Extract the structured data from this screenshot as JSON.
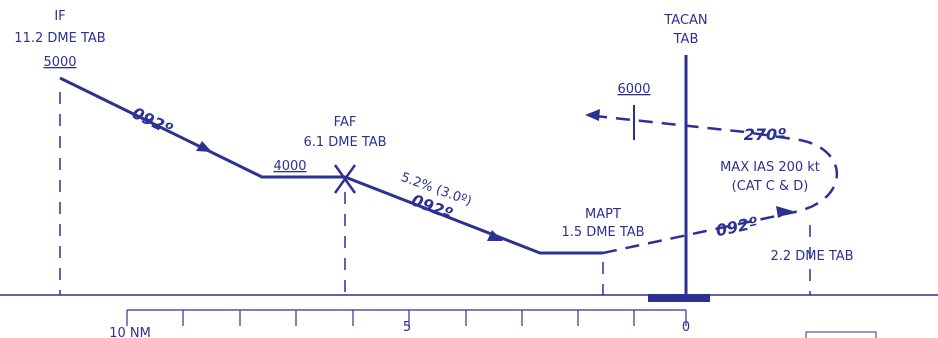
{
  "fixes": {
    "if": {
      "name": "IF",
      "dist": "11.2 DME TAB",
      "alt": "5000"
    },
    "faf": {
      "name": "FAF",
      "dist": "6.1 DME TAB",
      "alt": "4000"
    },
    "mapt": {
      "name": "MAPT",
      "dist": "1.5 DME TAB"
    },
    "tacan": {
      "name": "TACAN",
      "dist": "TAB"
    },
    "turn": {
      "dist": "2.2 DME TAB"
    }
  },
  "courses": [
    "092º",
    "092º",
    "092º",
    "270º"
  ],
  "glidepath": "5.2% (3.0º)",
  "missed": {
    "alt": "6000",
    "speed": "MAX IAS 200 kt",
    "cat": "(CAT C & D)"
  },
  "scale": [
    "10 NM",
    "5",
    "0"
  ]
}
